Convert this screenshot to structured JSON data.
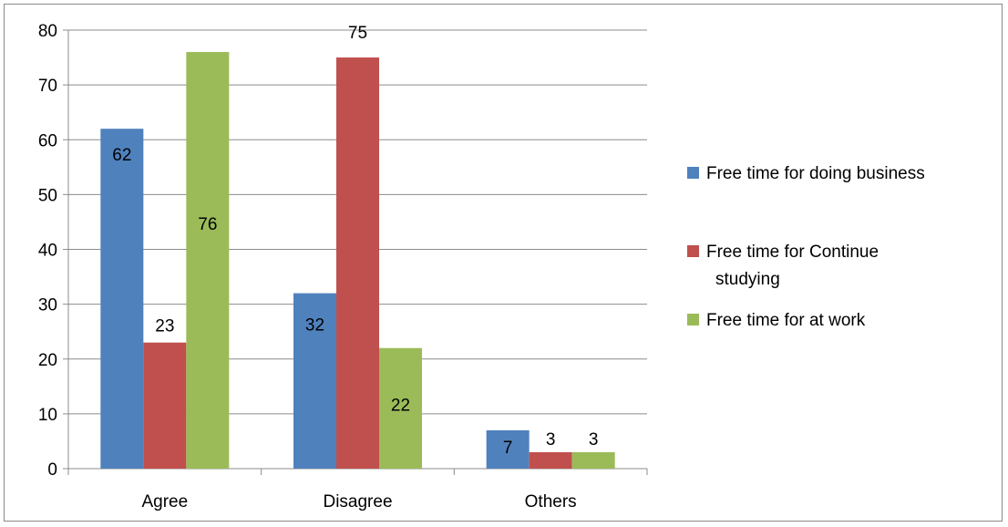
{
  "chart_data": {
    "type": "bar",
    "categories": [
      "Agree",
      "Disagree",
      "Others"
    ],
    "series": [
      {
        "name": "Free time for doing business",
        "values": [
          62,
          32,
          7
        ],
        "color": "#4F81BD"
      },
      {
        "name": "Free time for Continue studying",
        "values": [
          23,
          75,
          3
        ],
        "color": "#C0504D"
      },
      {
        "name": "Free time for at work",
        "values": [
          76,
          22,
          3
        ],
        "color": "#9BBB59"
      }
    ],
    "y_ticks": [
      "0",
      "10",
      "20",
      "30",
      "40",
      "50",
      "60",
      "70",
      "80"
    ],
    "ylim": [
      0,
      80
    ],
    "grid": true,
    "legend_position": "right",
    "data_labels": true
  }
}
